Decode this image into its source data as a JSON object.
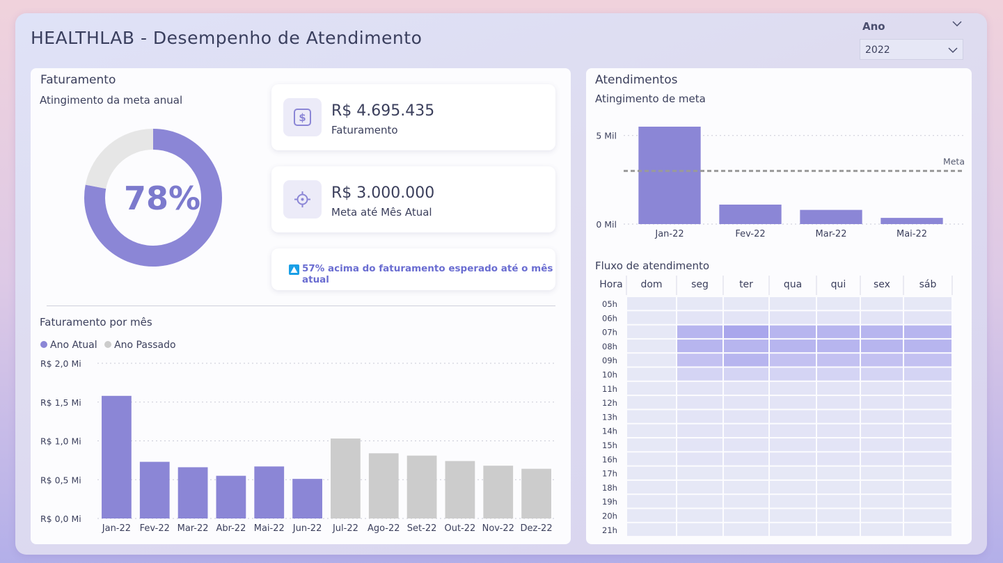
{
  "page": {
    "title": "HEALTHLAB - Desempenho de Atendimento"
  },
  "filter": {
    "label": "Ano",
    "selected": "2022"
  },
  "faturamento": {
    "title": "Faturamento",
    "donut_subtitle": "Atingimento da meta anual",
    "donut_percent": 78,
    "donut_label": "78%",
    "kpi_revenue": {
      "value": "R$ 4.695.435",
      "label": "Faturamento",
      "icon": "dollar-icon"
    },
    "kpi_goal": {
      "value": "R$ 3.000.000",
      "label": "Meta até Mês Atual",
      "icon": "target-icon"
    },
    "note": {
      "text": "57% acima do faturamento esperado até o mês atual",
      "icon": "triangle-up-icon"
    },
    "monthly_subtitle": "Faturamento por mês",
    "legend": [
      {
        "label": "Ano Atual",
        "color": "#8b86d6"
      },
      {
        "label": "Ano Passado",
        "color": "#cccccc"
      }
    ]
  },
  "atendimentos": {
    "title": "Atendimentos",
    "goal_subtitle": "Atingimento de meta",
    "meta_label": "Meta",
    "flow_subtitle": "Fluxo de atendimento",
    "heatmap_hour_header": "Hora"
  },
  "colors": {
    "accent": "#8b86d6",
    "previous_year": "#cccccc",
    "meta_line": "#9a9a9a"
  },
  "chart_data": [
    {
      "id": "goal-donut",
      "type": "pie",
      "values": [
        78,
        22
      ],
      "colors": [
        "#8b86d6",
        "#e6e6e6"
      ]
    },
    {
      "id": "monthly-revenue",
      "type": "bar",
      "categories": [
        "Jan-22",
        "Fev-22",
        "Mar-22",
        "Abr-22",
        "Mai-22",
        "Jun-22",
        "Jul-22",
        "Ago-22",
        "Set-22",
        "Out-22",
        "Nov-22",
        "Dez-22"
      ],
      "values": [
        1.58,
        0.73,
        0.66,
        0.55,
        0.67,
        0.51,
        1.03,
        0.84,
        0.81,
        0.74,
        0.68,
        0.64
      ],
      "series_membership": [
        "Ano Atual",
        "Ano Atual",
        "Ano Atual",
        "Ano Atual",
        "Ano Atual",
        "Ano Atual",
        "Ano Passado",
        "Ano Passado",
        "Ano Passado",
        "Ano Passado",
        "Ano Passado",
        "Ano Passado"
      ],
      "yticks": [
        "R$ 0,0 Mi",
        "R$ 0,5 Mi",
        "R$ 1,0 Mi",
        "R$ 1,5 Mi",
        "R$ 2,0 Mi"
      ],
      "ylim": [
        0,
        2.0
      ],
      "grid": true,
      "legend": "top-left"
    },
    {
      "id": "attendance-goal",
      "type": "bar",
      "categories": [
        "Jan-22",
        "Fev-22",
        "Mar-22",
        "Mai-22"
      ],
      "values": [
        5.5,
        1.1,
        0.8,
        0.35
      ],
      "meta": 3.0,
      "yticks": [
        "0 Mil",
        "5 Mil"
      ],
      "ylim": [
        0,
        5.5
      ],
      "grid": true
    },
    {
      "id": "attendance-flow",
      "type": "heatmap",
      "columns": [
        "dom",
        "seg",
        "ter",
        "qua",
        "qui",
        "sex",
        "sáb"
      ],
      "rows": [
        "05h",
        "06h",
        "07h",
        "08h",
        "09h",
        "10h",
        "11h",
        "12h",
        "13h",
        "14h",
        "15h",
        "16h",
        "17h",
        "18h",
        "19h",
        "20h",
        "21h"
      ],
      "intensity": [
        [
          0,
          0,
          0,
          0,
          0,
          0,
          0
        ],
        [
          0,
          1,
          1,
          1,
          1,
          1,
          1
        ],
        [
          0,
          4,
          5,
          4,
          4,
          4,
          4
        ],
        [
          0,
          4,
          4,
          4,
          4,
          4,
          4
        ],
        [
          0,
          3,
          4,
          3,
          3,
          3,
          3
        ],
        [
          0,
          2,
          2,
          2,
          2,
          2,
          2
        ],
        [
          0,
          1,
          1,
          1,
          1,
          1,
          1
        ],
        [
          0,
          1,
          1,
          1,
          1,
          1,
          1
        ],
        [
          0,
          1,
          1,
          1,
          1,
          1,
          1
        ],
        [
          0,
          1,
          1,
          1,
          1,
          1,
          1
        ],
        [
          0,
          1,
          1,
          1,
          1,
          1,
          1
        ],
        [
          0,
          1,
          1,
          1,
          1,
          1,
          1
        ],
        [
          0,
          0,
          0,
          0,
          0,
          0,
          0
        ],
        [
          0,
          0,
          0,
          0,
          0,
          0,
          0
        ],
        [
          0,
          0,
          0,
          0,
          0,
          0,
          0
        ],
        [
          0,
          0,
          0,
          0,
          0,
          0,
          0
        ],
        [
          0,
          0,
          0,
          0,
          0,
          0,
          0
        ]
      ]
    }
  ]
}
